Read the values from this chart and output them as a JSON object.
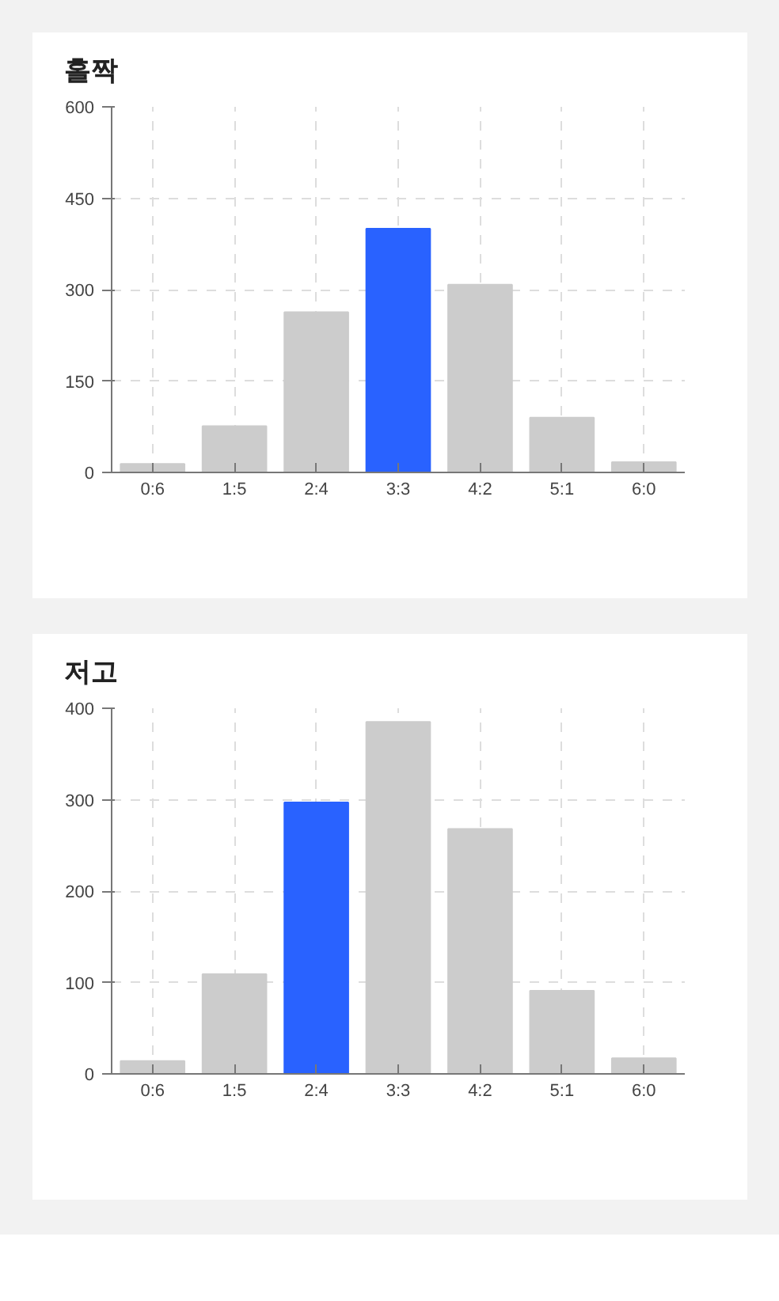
{
  "chart_data": [
    {
      "type": "bar",
      "title": "홀짝",
      "categories": [
        "0:6",
        "1:5",
        "2:4",
        "3:3",
        "4:2",
        "5:1",
        "6:0"
      ],
      "values": [
        14,
        76,
        263,
        400,
        308,
        90,
        17
      ],
      "colors": [
        "#cccccc",
        "#cccccc",
        "#cccccc",
        "#2962ff",
        "#cccccc",
        "#cccccc",
        "#cccccc"
      ],
      "ylim": [
        0,
        600
      ],
      "yticks": [
        0,
        150,
        300,
        450,
        600
      ],
      "grid": true
    },
    {
      "type": "bar",
      "title": "저고",
      "categories": [
        "0:6",
        "1:5",
        "2:4",
        "3:3",
        "4:2",
        "5:1",
        "6:0"
      ],
      "values": [
        14,
        109,
        297,
        385,
        268,
        91,
        17
      ],
      "colors": [
        "#cccccc",
        "#cccccc",
        "#2962ff",
        "#cccccc",
        "#cccccc",
        "#cccccc",
        "#cccccc"
      ],
      "ylim": [
        0,
        400
      ],
      "yticks": [
        0,
        100,
        200,
        300,
        400
      ],
      "grid": true
    }
  ]
}
